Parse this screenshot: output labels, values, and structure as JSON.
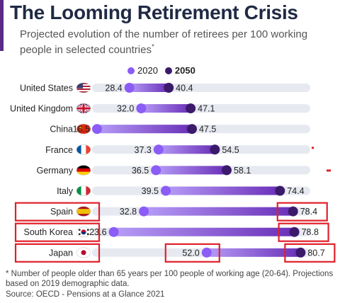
{
  "header": {
    "title": "The Looming Retirement Crisis",
    "subtitle": "Projected evolution of the number of retirees per 100 working people in selected countries",
    "subtitle_mark": "*"
  },
  "legend": {
    "label_2020": "2020",
    "label_2050": "2050"
  },
  "colors": {
    "accent": "#5b2a86",
    "dot_2020": "#8b5cf6",
    "dot_2050": "#3b1a6b",
    "track": "#e6e9f0",
    "highlight_box": "#e0202a"
  },
  "chart_data": {
    "type": "dumbbell",
    "categories": [
      "United States",
      "United Kingdom",
      "China",
      "France",
      "Germany",
      "Italy",
      "Spain",
      "South Korea",
      "Japan"
    ],
    "series": [
      {
        "name": "2020",
        "values": [
          28.4,
          32.0,
          18.5,
          37.3,
          36.5,
          39.5,
          32.8,
          23.6,
          52.0
        ]
      },
      {
        "name": "2050",
        "values": [
          40.4,
          47.1,
          47.5,
          54.5,
          58.1,
          74.4,
          78.4,
          78.8,
          80.7
        ]
      }
    ],
    "value_labels_2020": [
      "28.4",
      "32.0",
      "18.5",
      "37.3",
      "36.5",
      "39.5",
      "32.8",
      "23.6",
      "52.0"
    ],
    "value_labels_2050": [
      "40.4",
      "47.1",
      "47.5",
      "54.5",
      "58.1",
      "74.4",
      "78.4",
      "78.8",
      "80.7"
    ],
    "flag_icons": [
      "us-flag-icon",
      "uk-flag-icon",
      "china-flag-icon",
      "france-flag-icon",
      "germany-flag-icon",
      "italy-flag-icon",
      "spain-flag-icon",
      "south-korea-flag-icon",
      "japan-flag-icon"
    ],
    "highlighted_categories": [
      "Spain",
      "South Korea",
      "Japan"
    ],
    "highlighted_2020_values": [
      "Japan"
    ],
    "xlim": [
      0,
      85
    ],
    "grid": false,
    "legend_position": "top-center"
  },
  "footnote": {
    "text": "* Number of people older than 65 years per 100 people of working age (20-64). Projections based on 2019 demographic data."
  },
  "source": {
    "text": "Source: OECD - Pensions at a Glance 2021"
  }
}
